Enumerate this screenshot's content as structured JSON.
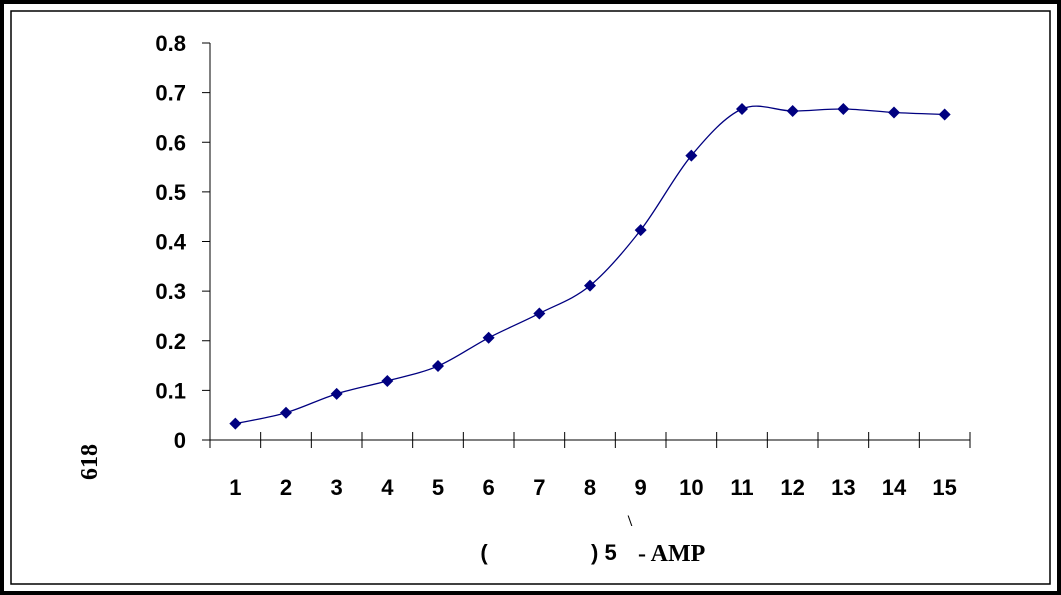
{
  "chart_data": {
    "type": "line",
    "categories": [
      "1",
      "2",
      "3",
      "4",
      "5",
      "6",
      "7",
      "8",
      "9",
      "10",
      "11",
      "12",
      "13",
      "14",
      "15"
    ],
    "series": [
      {
        "values": [
          0.033,
          0.055,
          0.093,
          0.119,
          0.149,
          0.206,
          0.255,
          0.311,
          0.423,
          0.573,
          0.667,
          0.663,
          0.667,
          0.66,
          0.656
        ]
      }
    ],
    "y_ticks": [
      "0",
      "0.1",
      "0.2",
      "0.3",
      "0.4",
      "0.5",
      "0.6",
      "0.7",
      "0.8"
    ],
    "ylim": [
      0,
      0.8
    ],
    "ylabel": "618",
    "xlabel_parts": {
      "open_paren": "(",
      "close_paren_number": ") 5",
      "mark": "\\",
      "suffix": "- AMP"
    },
    "grid": false,
    "colors": {
      "line": "#000080",
      "marker": "#000080",
      "frame": "#000000"
    }
  }
}
